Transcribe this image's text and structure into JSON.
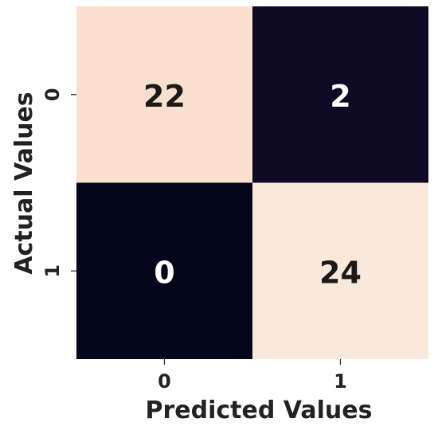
{
  "chart_data": {
    "type": "heatmap",
    "title": "",
    "xlabel": "Predicted Values",
    "ylabel": "Actual Values",
    "x_categories": [
      "0",
      "1"
    ],
    "y_categories": [
      "0",
      "1"
    ],
    "values": [
      [
        22,
        2
      ],
      [
        0,
        24
      ]
    ],
    "vmin": 0,
    "vmax": 24,
    "colorbar": false,
    "colors": {
      "scale": [
        "#03051a",
        "#2e1a3d",
        "#f5c6a6",
        "#fae8db"
      ]
    }
  }
}
